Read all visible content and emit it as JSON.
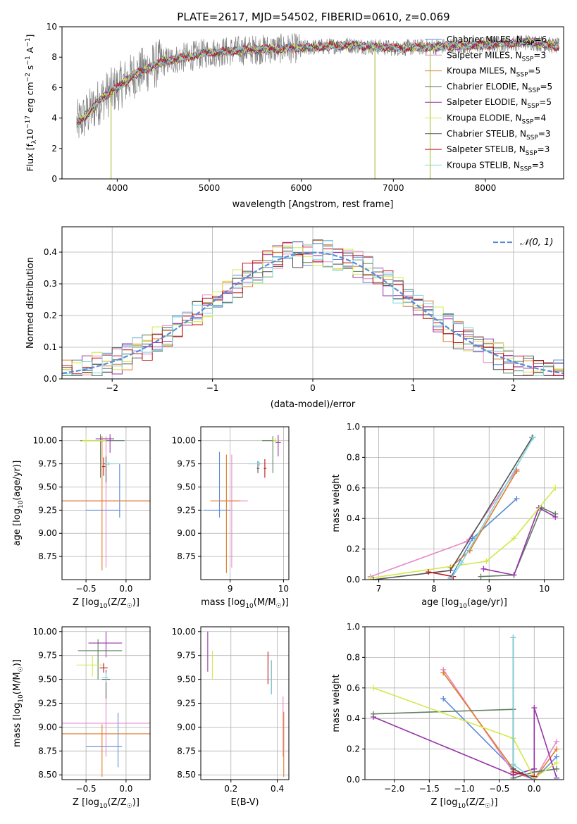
{
  "title": "PLATE=2617, MJD=54502, FIBERID=0610, z=0.069",
  "colors": {
    "Chabrier MILES": "#5b8bd6",
    "Salpeter MILES": "#e889c8",
    "Kroupa MILES": "#e07b28",
    "Chabrier ELODIE": "#5f7f5f",
    "Salpeter ELODIE": "#9933aa",
    "Kroupa ELODIE": "#d4e84a",
    "Chabrier STELIB": "#555555",
    "Salpeter STELIB": "#c0141c",
    "Kroupa STELIB": "#7fd6dc",
    "data": "#808080",
    "gaussian": "#5b8bd6"
  },
  "chart_data": [
    {
      "type": "line",
      "id": "spectrum",
      "xlabel": "wavelength [Angstrom, rest frame]",
      "ylabel": "Flux [f_λ10^-17 erg cm^-2 s^-1 A^-1]",
      "xlim": [
        3400,
        8850
      ],
      "ylim": [
        0,
        10
      ],
      "xticks": [
        4000,
        5000,
        6000,
        7000,
        8000
      ],
      "yticks": [
        0,
        2,
        4,
        6,
        8,
        10
      ],
      "grid": false,
      "legend_position": "right",
      "legend": [
        {
          "model": "Chabrier MILES",
          "nssp": "6"
        },
        {
          "model": "Salpeter MILES",
          "nssp": "3"
        },
        {
          "model": "Kroupa MILES",
          "nssp": "5"
        },
        {
          "model": "Chabrier ELODIE",
          "nssp": "5"
        },
        {
          "model": "Salpeter ELODIE",
          "nssp": "5"
        },
        {
          "model": "Kroupa ELODIE",
          "nssp": "4"
        },
        {
          "model": "Chabrier STELIB",
          "nssp": "3"
        },
        {
          "model": "Salpeter STELIB",
          "nssp": "3"
        },
        {
          "model": "Kroupa STELIB",
          "nssp": "3"
        }
      ],
      "continuum": {
        "x": [
          3560,
          3700,
          3850,
          4000,
          4200,
          4500,
          5000,
          5500,
          6000,
          6500,
          7000,
          7500,
          8000,
          8500,
          8800
        ],
        "y": [
          3.6,
          4.4,
          5.4,
          6.0,
          6.9,
          7.7,
          8.3,
          8.5,
          8.6,
          8.8,
          8.6,
          8.7,
          8.8,
          9.0,
          8.7
        ]
      },
      "absorption_spikes": [
        {
          "x": 3933,
          "y": 0
        },
        {
          "x": 6800,
          "y": 0
        },
        {
          "x": 7400,
          "y": 0
        }
      ]
    },
    {
      "type": "histogram",
      "id": "residuals",
      "xlabel": "(data-model)/error",
      "ylabel": "Normed distribution",
      "xlim": [
        -2.5,
        2.5
      ],
      "ylim": [
        0,
        0.48
      ],
      "xticks": [
        -2,
        -1,
        0,
        1,
        2
      ],
      "yticks": [
        0.0,
        0.1,
        0.2,
        0.3,
        0.4
      ],
      "grid": true,
      "legend": "𝒩(0, 1)",
      "legend_position": "top-right",
      "bin_width": 0.1
    },
    {
      "type": "errorbar",
      "id": "age-vs-Z",
      "xlabel": "Z [log10(Z/Z☉)]",
      "ylabel": "age  [log10(age/yr)]",
      "xlim": [
        -0.8,
        0.3
      ],
      "ylim": [
        8.5,
        10.15
      ],
      "xticks": [
        -0.5,
        0.0
      ],
      "yticks": [
        8.75,
        9.0,
        9.25,
        9.5,
        9.75,
        10.0
      ],
      "points": [
        {
          "model": "Chabrier MILES",
          "x": -0.08,
          "xerr": [
            0.42,
            0.0
          ],
          "y": 9.25,
          "yerr": [
            0.08,
            0.5
          ]
        },
        {
          "model": "Salpeter MILES",
          "x": -0.25,
          "xerr": [
            0.58,
            0.55
          ],
          "y": 9.35,
          "yerr": [
            0.72,
            0.7
          ]
        },
        {
          "model": "Kroupa MILES",
          "x": -0.3,
          "xerr": [
            0.6,
            0.6
          ],
          "y": 9.35,
          "yerr": [
            0.75,
            0.7
          ]
        },
        {
          "model": "Chabrier ELODIE",
          "x": -0.32,
          "xerr": [
            0.25,
            0.3
          ],
          "y": 10.0,
          "yerr": [
            0.4,
            0.07
          ]
        },
        {
          "model": "Salpeter ELODIE",
          "x": -0.2,
          "xerr": [
            0.18,
            0.05
          ],
          "y": 10.02,
          "yerr": [
            0.15,
            0.05
          ]
        },
        {
          "model": "Kroupa ELODIE",
          "x": -0.5,
          "xerr": [
            0.05,
            0.25
          ],
          "y": 10.0,
          "yerr": [
            0.03,
            0.03
          ]
        },
        {
          "model": "Chabrier STELIB",
          "x": -0.25,
          "xerr": [
            0.03,
            0.05
          ],
          "y": 9.75,
          "yerr": [
            0.2,
            0.08
          ]
        },
        {
          "model": "Salpeter STELIB",
          "x": -0.28,
          "xerr": [
            0.02,
            0.02
          ],
          "y": 9.72,
          "yerr": [
            0.1,
            0.1
          ]
        },
        {
          "model": "Kroupa STELIB",
          "x": -0.22,
          "xerr": [
            0.04,
            0.1
          ],
          "y": 9.75,
          "yerr": [
            0.02,
            0.02
          ]
        }
      ]
    },
    {
      "type": "errorbar",
      "id": "age-vs-mass",
      "xlabel": "mass [log10(M/M☉)]",
      "ylabel": "",
      "xlim": [
        8.45,
        10.1
      ],
      "ylim": [
        8.5,
        10.15
      ],
      "xticks": [
        9,
        10
      ],
      "yticks": [
        8.75,
        9.0,
        9.25,
        9.5,
        9.75,
        10.0
      ],
      "points": [
        {
          "model": "Chabrier MILES",
          "x": 8.8,
          "xerr": [
            0.3,
            0.2
          ],
          "y": 9.25,
          "yerr": [
            0.08,
            0.63
          ]
        },
        {
          "model": "Salpeter MILES",
          "x": 9.03,
          "xerr": [
            0.2,
            0.3
          ],
          "y": 9.35,
          "yerr": [
            0.72,
            0.5
          ]
        },
        {
          "model": "Kroupa MILES",
          "x": 8.93,
          "xerr": [
            0.3,
            0.25
          ],
          "y": 9.35,
          "yerr": [
            0.78,
            0.5
          ]
        },
        {
          "model": "Chabrier ELODIE",
          "x": 9.8,
          "xerr": [
            0.2,
            0.05
          ],
          "y": 10.0,
          "yerr": [
            0.35,
            0.05
          ]
        },
        {
          "model": "Salpeter ELODIE",
          "x": 9.9,
          "xerr": [
            0.05,
            0.05
          ],
          "y": 9.98,
          "yerr": [
            0.15,
            0.08
          ]
        },
        {
          "model": "Kroupa ELODIE",
          "x": 9.85,
          "xerr": [
            0.05,
            0.05
          ],
          "y": 10.0,
          "yerr": [
            0.03,
            0.03
          ]
        },
        {
          "model": "Chabrier STELIB",
          "x": 9.52,
          "xerr": [
            0.02,
            0.03
          ],
          "y": 9.7,
          "yerr": [
            0.05,
            0.08
          ]
        },
        {
          "model": "Salpeter STELIB",
          "x": 9.65,
          "xerr": [
            0.02,
            0.03
          ],
          "y": 9.7,
          "yerr": [
            0.1,
            0.1
          ]
        },
        {
          "model": "Kroupa STELIB",
          "x": 9.55,
          "xerr": [
            0.2,
            0.05
          ],
          "y": 9.75,
          "yerr": [
            0.02,
            0.02
          ]
        }
      ]
    },
    {
      "type": "line",
      "id": "massweight-vs-age",
      "xlabel": "age  [log10(age/yr)]",
      "ylabel": "mass weight",
      "xlim": [
        6.75,
        10.35
      ],
      "ylim": [
        0,
        1.0
      ],
      "xticks": [
        7,
        8,
        9,
        10
      ],
      "yticks": [
        0.0,
        0.2,
        0.4,
        0.6,
        0.8,
        1.0
      ],
      "grid": true,
      "series": [
        {
          "model": "Chabrier MILES",
          "x": [
            8.3,
            8.7,
            9.5
          ],
          "y": [
            0.01,
            0.27,
            0.53
          ]
        },
        {
          "model": "Salpeter MILES",
          "x": [
            6.85,
            8.6,
            9.5
          ],
          "y": [
            0.02,
            0.25,
            0.72
          ]
        },
        {
          "model": "Kroupa MILES",
          "x": [
            8.3,
            8.65,
            9.5
          ],
          "y": [
            0.08,
            0.19,
            0.71
          ]
        },
        {
          "model": "Chabrier ELODIE",
          "x": [
            8.85,
            9.45,
            9.95,
            10.2
          ],
          "y": [
            0.02,
            0.03,
            0.47,
            0.43
          ]
        },
        {
          "model": "Salpeter ELODIE",
          "x": [
            8.9,
            9.45,
            9.9,
            10.2
          ],
          "y": [
            0.07,
            0.03,
            0.47,
            0.41
          ]
        },
        {
          "model": "Kroupa ELODIE",
          "x": [
            6.85,
            8.95,
            9.45,
            10.2
          ],
          "y": [
            0.01,
            0.12,
            0.27,
            0.6
          ]
        },
        {
          "model": "Chabrier STELIB",
          "x": [
            6.9,
            8.3,
            9.78
          ],
          "y": [
            0.0,
            0.06,
            0.93
          ]
        },
        {
          "model": "Salpeter STELIB",
          "x": [
            7.9,
            8.35
          ],
          "y": [
            0.05,
            0.02
          ]
        },
        {
          "model": "Kroupa STELIB",
          "x": [
            8.3,
            8.5,
            9.8
          ],
          "y": [
            0.0,
            0.11,
            0.93
          ]
        }
      ]
    },
    {
      "type": "errorbar",
      "id": "mass-vs-Z",
      "xlabel": "Z [log10(Z/Z☉)]",
      "ylabel": "mass [log10(M/M☉)]",
      "xlim": [
        -0.8,
        0.3
      ],
      "ylim": [
        8.45,
        10.05
      ],
      "xticks": [
        -0.5,
        0.0
      ],
      "yticks": [
        8.5,
        8.75,
        9.0,
        9.25,
        9.5,
        9.75,
        10.0
      ],
      "points": [
        {
          "model": "Chabrier MILES",
          "x": -0.1,
          "xerr": [
            0.4,
            0.05
          ],
          "y": 8.8,
          "yerr": [
            0.22,
            0.35
          ]
        },
        {
          "model": "Salpeter MILES",
          "x": -0.25,
          "xerr": [
            0.55,
            0.55
          ],
          "y": 9.04,
          "yerr": [
            0.35,
            0.3
          ]
        },
        {
          "model": "Kroupa MILES",
          "x": -0.3,
          "xerr": [
            0.6,
            0.6
          ],
          "y": 8.93,
          "yerr": [
            0.45,
            0.1
          ]
        },
        {
          "model": "Chabrier ELODIE",
          "x": -0.35,
          "xerr": [
            0.25,
            0.3
          ],
          "y": 9.8,
          "yerr": [
            0.3,
            0.12
          ]
        },
        {
          "model": "Salpeter ELODIE",
          "x": -0.25,
          "xerr": [
            0.22,
            0.2
          ],
          "y": 9.88,
          "yerr": [
            0.15,
            0.12
          ]
        },
        {
          "model": "Kroupa ELODIE",
          "x": -0.42,
          "xerr": [
            0.2,
            0.15
          ],
          "y": 9.65,
          "yerr": [
            0.12,
            0.1
          ]
        },
        {
          "model": "Chabrier STELIB",
          "x": -0.25,
          "xerr": [
            0.05,
            0.05
          ],
          "y": 9.5,
          "yerr": [
            0.2,
            0.1
          ]
        },
        {
          "model": "Salpeter STELIB",
          "x": -0.28,
          "xerr": [
            0.05,
            0.05
          ],
          "y": 9.62,
          "yerr": [
            0.05,
            0.05
          ]
        },
        {
          "model": "Kroupa STELIB",
          "x": -0.25,
          "xerr": [
            0.05,
            0.03
          ],
          "y": 9.52,
          "yerr": [
            0.05,
            0.05
          ]
        }
      ]
    },
    {
      "type": "errorbar",
      "id": "mass-vs-EBV",
      "xlabel": "E(B-V)",
      "ylabel": "",
      "xlim": [
        0.07,
        0.45
      ],
      "ylim": [
        8.45,
        10.05
      ],
      "xticks": [
        0.2,
        0.4
      ],
      "yticks": [
        8.5,
        8.75,
        9.0,
        9.25,
        9.5,
        9.75,
        10.0
      ],
      "points": [
        {
          "model": "Salpeter MILES",
          "x": 0.425,
          "y": 9.04,
          "yerr": [
            0.35,
            0.28
          ]
        },
        {
          "model": "Kroupa MILES",
          "x": 0.428,
          "y": 8.93,
          "yerr": [
            0.45,
            0.23
          ]
        },
        {
          "model": "Salpeter ELODIE",
          "x": 0.1,
          "y": 9.88,
          "yerr": [
            0.3,
            0.12
          ]
        },
        {
          "model": "Kroupa ELODIE",
          "x": 0.12,
          "y": 9.65,
          "yerr": [
            0.15,
            0.15
          ]
        },
        {
          "model": "Chabrier STELIB",
          "x": 0.375,
          "y": 9.5,
          "yerr": [
            0.15,
            0.2
          ]
        },
        {
          "model": "Salpeter STELIB",
          "x": 0.36,
          "y": 9.62,
          "yerr": [
            0.17,
            0.17
          ]
        },
        {
          "model": "Kroupa STELIB",
          "x": 0.375,
          "y": 9.52,
          "yerr": [
            0.18,
            0.18
          ]
        }
      ]
    },
    {
      "type": "line",
      "id": "massweight-vs-Z",
      "xlabel": "Z [log10(Z/Z☉)]",
      "ylabel": "mass weight",
      "xlim": [
        -2.42,
        0.42
      ],
      "ylim": [
        0,
        1.0
      ],
      "xticks": [
        -2.0,
        -1.5,
        -1.0,
        -0.5,
        0.0
      ],
      "yticks": [
        0.0,
        0.2,
        0.4,
        0.6,
        0.8,
        1.0
      ],
      "grid": true,
      "series": [
        {
          "model": "Chabrier MILES",
          "x": [
            -1.3,
            -0.3,
            0.0,
            0.32
          ],
          "y": [
            0.53,
            0.07,
            0.0,
            0.15
          ]
        },
        {
          "model": "Salpeter MILES",
          "x": [
            -1.3,
            -0.3,
            0.0,
            0.32
          ],
          "y": [
            0.72,
            0.05,
            0.0,
            0.25
          ]
        },
        {
          "model": "Kroupa MILES",
          "x": [
            -1.3,
            -0.3,
            0.0,
            0.32
          ],
          "y": [
            0.7,
            0.07,
            0.0,
            0.2
          ]
        },
        {
          "model": "Chabrier ELODIE",
          "x": [
            -2.3,
            -0.3,
            -0.3,
            0.0,
            0.32
          ],
          "y": [
            0.43,
            0.46,
            0.01,
            0.05,
            0.07
          ]
        },
        {
          "model": "Salpeter ELODIE",
          "x": [
            -2.3,
            -0.3,
            0.0,
            0.0,
            0.32
          ],
          "y": [
            0.41,
            0.03,
            0.07,
            0.47,
            0.01
          ]
        },
        {
          "model": "Kroupa ELODIE",
          "x": [
            -2.3,
            -0.3,
            0.0,
            0.32
          ],
          "y": [
            0.6,
            0.27,
            0.01,
            0.11
          ]
        },
        {
          "model": "Chabrier STELIB",
          "x": [
            -0.3,
            -0.3,
            0.0
          ],
          "y": [
            0.93,
            0.07,
            0.0
          ]
        },
        {
          "model": "Salpeter STELIB",
          "x": [
            -0.3,
            0.0
          ],
          "y": [
            0.05,
            0.02
          ]
        },
        {
          "model": "Kroupa STELIB",
          "x": [
            -0.3,
            -0.3,
            0.0,
            0.32
          ],
          "y": [
            0.93,
            0.1,
            0.0,
            0.0
          ]
        }
      ]
    }
  ]
}
